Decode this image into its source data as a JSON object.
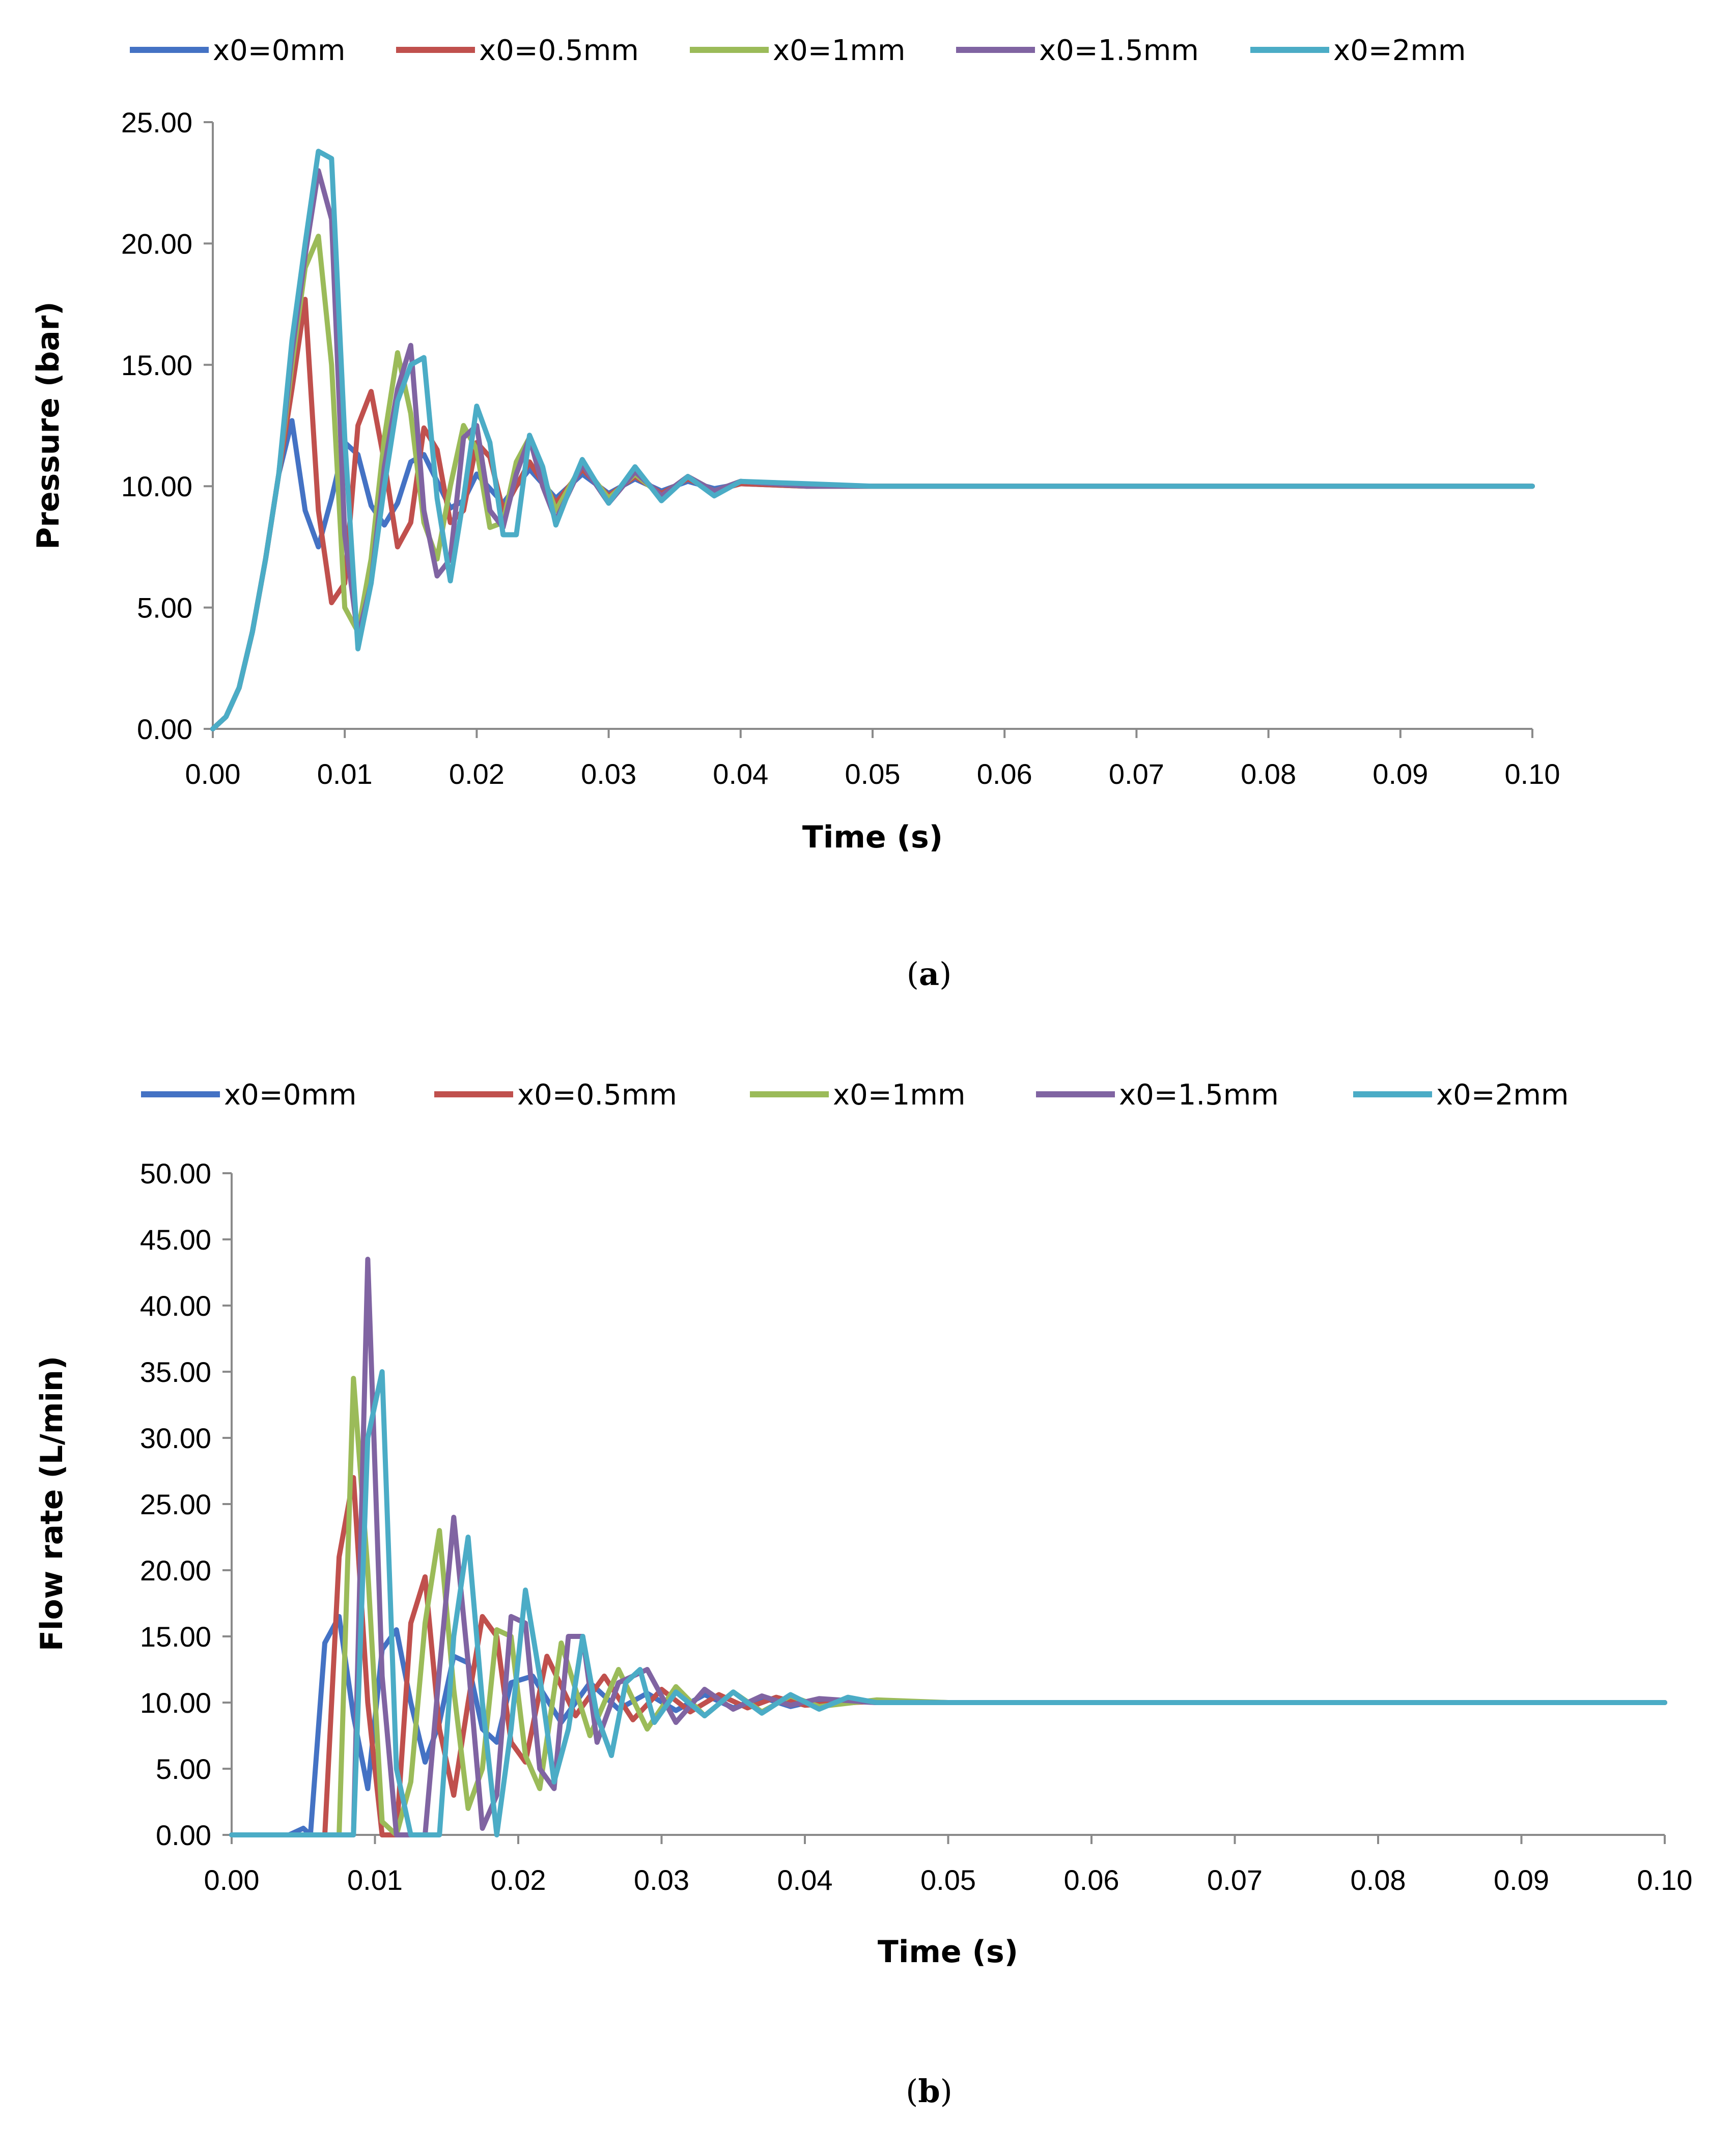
{
  "chart_data": [
    {
      "type": "line",
      "panel": "a",
      "caption_letter": "a",
      "caption": "(a)",
      "xlabel": "Time (s)",
      "ylabel": "Pressure (bar)",
      "xlim": [
        0,
        0.1
      ],
      "ylim": [
        0,
        25
      ],
      "x_ticks": [
        "0.00",
        "0.01",
        "0.02",
        "0.03",
        "0.04",
        "0.05",
        "0.06",
        "0.07",
        "0.08",
        "0.09",
        "0.10"
      ],
      "y_ticks": [
        "0.00",
        "5.00",
        "10.00",
        "15.00",
        "20.00",
        "25.00"
      ],
      "legend_position": "top",
      "series": [
        {
          "name": "x0=0mm",
          "color": "#4472C4",
          "x": [
            0,
            0.001,
            0.002,
            0.003,
            0.004,
            0.005,
            0.006,
            0.007,
            0.008,
            0.009,
            0.01,
            0.011,
            0.012,
            0.013,
            0.014,
            0.015,
            0.016,
            0.017,
            0.018,
            0.019,
            0.02,
            0.022,
            0.024,
            0.026,
            0.028,
            0.03,
            0.032,
            0.034,
            0.036,
            0.038,
            0.04,
            0.045,
            0.05,
            0.055,
            0.06,
            0.07,
            0.08,
            0.09,
            0.1
          ],
          "y": [
            0,
            0.5,
            1.7,
            4,
            7,
            10.5,
            12.7,
            9,
            7.5,
            9.5,
            11.8,
            11.3,
            9.2,
            8.4,
            9.3,
            11,
            11.3,
            10.2,
            9.1,
            9.4,
            10.5,
            9.3,
            10.7,
            9.5,
            10.5,
            9.7,
            10.3,
            9.8,
            10.2,
            9.9,
            10.1,
            10,
            10,
            10,
            10,
            10,
            10,
            10,
            10
          ]
        },
        {
          "name": "x0=0.5mm",
          "color": "#C0504D",
          "x": [
            0,
            0.001,
            0.002,
            0.003,
            0.004,
            0.005,
            0.006,
            0.007,
            0.008,
            0.009,
            0.01,
            0.011,
            0.012,
            0.013,
            0.014,
            0.015,
            0.016,
            0.017,
            0.018,
            0.019,
            0.02,
            0.021,
            0.022,
            0.024,
            0.026,
            0.028,
            0.03,
            0.032,
            0.034,
            0.036,
            0.038,
            0.04,
            0.045,
            0.05,
            0.055,
            0.06,
            0.07,
            0.08,
            0.09,
            0.1
          ],
          "y": [
            0,
            0.5,
            1.7,
            4,
            7,
            10.5,
            14,
            17.7,
            9,
            5.2,
            6,
            12.5,
            13.9,
            11,
            7.5,
            8.5,
            12.4,
            11.5,
            8.5,
            9,
            11.8,
            11.2,
            9,
            11,
            9.3,
            10.7,
            9.6,
            10.4,
            9.7,
            10.3,
            9.8,
            10.1,
            10,
            10,
            10,
            10,
            10,
            10,
            10,
            10
          ]
        },
        {
          "name": "x0=1mm",
          "color": "#9BBB59",
          "x": [
            0,
            0.001,
            0.002,
            0.003,
            0.004,
            0.005,
            0.006,
            0.007,
            0.008,
            0.009,
            0.01,
            0.011,
            0.012,
            0.013,
            0.014,
            0.015,
            0.016,
            0.017,
            0.018,
            0.019,
            0.02,
            0.021,
            0.022,
            0.023,
            0.024,
            0.026,
            0.028,
            0.03,
            0.032,
            0.034,
            0.036,
            0.038,
            0.04,
            0.045,
            0.05,
            0.055,
            0.06,
            0.07,
            0.08,
            0.09,
            0.1
          ],
          "y": [
            0,
            0.5,
            1.7,
            4,
            7,
            10.5,
            15,
            19,
            20.3,
            15,
            5,
            4,
            7,
            12,
            15.5,
            13,
            8.5,
            7,
            10,
            12.5,
            11.5,
            8.3,
            8.5,
            11,
            12,
            9,
            10.9,
            9.5,
            10.5,
            9.6,
            10.4,
            9.8,
            10.2,
            10,
            10,
            10,
            10,
            10,
            10,
            10,
            10
          ]
        },
        {
          "name": "x0=1.5mm",
          "color": "#8064A2",
          "x": [
            0,
            0.001,
            0.002,
            0.003,
            0.004,
            0.005,
            0.006,
            0.007,
            0.008,
            0.009,
            0.01,
            0.011,
            0.012,
            0.013,
            0.014,
            0.015,
            0.016,
            0.017,
            0.018,
            0.019,
            0.02,
            0.021,
            0.022,
            0.023,
            0.024,
            0.025,
            0.026,
            0.028,
            0.03,
            0.032,
            0.034,
            0.036,
            0.038,
            0.04,
            0.045,
            0.05,
            0.055,
            0.06,
            0.07,
            0.08,
            0.09,
            0.1
          ],
          "y": [
            0,
            0.5,
            1.7,
            4,
            7,
            10.5,
            15.5,
            19.5,
            23,
            21,
            8,
            3.8,
            6,
            10.8,
            14,
            15.8,
            9,
            6.3,
            7,
            12,
            12.5,
            9,
            8.3,
            10.5,
            12,
            10,
            8.6,
            10.9,
            9.3,
            10.6,
            9.6,
            10.4,
            9.8,
            10.2,
            10,
            10,
            10,
            10,
            10,
            10,
            10,
            10
          ]
        },
        {
          "name": "x0=2mm",
          "color": "#4BACC6",
          "x": [
            0,
            0.001,
            0.002,
            0.003,
            0.004,
            0.005,
            0.006,
            0.007,
            0.008,
            0.009,
            0.01,
            0.011,
            0.012,
            0.013,
            0.014,
            0.015,
            0.016,
            0.017,
            0.018,
            0.019,
            0.02,
            0.021,
            0.022,
            0.023,
            0.024,
            0.025,
            0.026,
            0.027,
            0.028,
            0.029,
            0.03,
            0.032,
            0.034,
            0.036,
            0.038,
            0.04,
            0.045,
            0.05,
            0.055,
            0.06,
            0.07,
            0.08,
            0.09,
            0.1
          ],
          "y": [
            0,
            0.5,
            1.7,
            4,
            7,
            10.5,
            16,
            20,
            23.8,
            23.5,
            12,
            3.3,
            6,
            10,
            13.5,
            15,
            15.3,
            9.5,
            6.1,
            9.5,
            13.3,
            11.8,
            8,
            8,
            12.1,
            10.8,
            8.4,
            9.8,
            11.1,
            10.2,
            9.3,
            10.8,
            9.4,
            10.4,
            9.6,
            10.2,
            10.1,
            10,
            10,
            10,
            10,
            10,
            10,
            10
          ]
        }
      ]
    },
    {
      "type": "line",
      "panel": "b",
      "caption_letter": "b",
      "caption": "(b)",
      "xlabel": "Time (s)",
      "ylabel": "Flow rate (L/min)",
      "xlim": [
        0,
        0.1
      ],
      "ylim": [
        0,
        50
      ],
      "x_ticks": [
        "0.00",
        "0.01",
        "0.02",
        "0.03",
        "0.04",
        "0.05",
        "0.06",
        "0.07",
        "0.08",
        "0.09",
        "0.10"
      ],
      "y_ticks": [
        "0.00",
        "5.00",
        "10.00",
        "15.00",
        "20.00",
        "25.00",
        "30.00",
        "35.00",
        "40.00",
        "45.00",
        "50.00"
      ],
      "legend_position": "top",
      "series": [
        {
          "name": "x0=0mm",
          "color": "#4472C4",
          "x": [
            0,
            0.001,
            0.002,
            0.003,
            0.004,
            0.005,
            0.0055,
            0.0065,
            0.0075,
            0.0085,
            0.0095,
            0.0105,
            0.0115,
            0.0125,
            0.0135,
            0.0145,
            0.0155,
            0.0165,
            0.0175,
            0.0185,
            0.0195,
            0.021,
            0.023,
            0.025,
            0.027,
            0.029,
            0.031,
            0.033,
            0.035,
            0.037,
            0.039,
            0.041,
            0.045,
            0.05,
            0.055,
            0.06,
            0.07,
            0.08,
            0.09,
            0.1
          ],
          "y": [
            0,
            0,
            0,
            0,
            0,
            0.5,
            0,
            14.5,
            16.5,
            9,
            3.5,
            14,
            15.5,
            10,
            5.5,
            8.5,
            13.5,
            13,
            8,
            7,
            11.5,
            12,
            8.5,
            11.5,
            9.5,
            10.7,
            9.4,
            10.6,
            9.6,
            10.4,
            9.7,
            10.2,
            10,
            10,
            10,
            10,
            10,
            10,
            10,
            10
          ]
        },
        {
          "name": "x0=0.5mm",
          "color": "#C0504D",
          "x": [
            0,
            0.001,
            0.002,
            0.003,
            0.004,
            0.005,
            0.006,
            0.0065,
            0.0075,
            0.0085,
            0.0095,
            0.0105,
            0.0115,
            0.0125,
            0.0135,
            0.0145,
            0.0155,
            0.0165,
            0.0175,
            0.0185,
            0.0195,
            0.0205,
            0.022,
            0.024,
            0.026,
            0.028,
            0.03,
            0.032,
            0.034,
            0.036,
            0.038,
            0.04,
            0.045,
            0.05,
            0.055,
            0.06,
            0.07,
            0.08,
            0.09,
            0.1
          ],
          "y": [
            0,
            0,
            0,
            0,
            0,
            0,
            0,
            0,
            21,
            27,
            10,
            0,
            0,
            16,
            19.5,
            8,
            3,
            10,
            16.5,
            15,
            7,
            5.5,
            13.5,
            9,
            12,
            8.7,
            11,
            9.3,
            10.6,
            9.6,
            10.4,
            9.8,
            10.1,
            10,
            10,
            10,
            10,
            10,
            10,
            10
          ]
        },
        {
          "name": "x0=1mm",
          "color": "#9BBB59",
          "x": [
            0,
            0.001,
            0.002,
            0.003,
            0.004,
            0.005,
            0.006,
            0.007,
            0.0075,
            0.0085,
            0.0095,
            0.0105,
            0.0115,
            0.0125,
            0.0135,
            0.0145,
            0.0155,
            0.0165,
            0.0175,
            0.0185,
            0.0195,
            0.0205,
            0.0215,
            0.023,
            0.025,
            0.027,
            0.029,
            0.031,
            0.033,
            0.035,
            0.037,
            0.039,
            0.041,
            0.045,
            0.05,
            0.055,
            0.06,
            0.07,
            0.08,
            0.09,
            0.1
          ],
          "y": [
            0,
            0,
            0,
            0,
            0,
            0,
            0,
            0,
            0,
            34.5,
            20,
            1,
            0,
            4,
            16,
            23,
            11,
            2,
            5,
            15.5,
            15,
            6,
            3.5,
            14.5,
            7.5,
            12.5,
            8,
            11.2,
            9,
            10.8,
            9.3,
            10.5,
            9.7,
            10.2,
            10,
            10,
            10,
            10,
            10,
            10,
            10
          ]
        },
        {
          "name": "x0=1.5mm",
          "color": "#8064A2",
          "x": [
            0,
            0.001,
            0.002,
            0.003,
            0.004,
            0.005,
            0.006,
            0.007,
            0.008,
            0.0085,
            0.0095,
            0.0105,
            0.0115,
            0.0125,
            0.0135,
            0.0145,
            0.0155,
            0.0165,
            0.0175,
            0.0185,
            0.0195,
            0.0205,
            0.0215,
            0.0225,
            0.0235,
            0.0245,
            0.0255,
            0.027,
            0.029,
            0.031,
            0.033,
            0.035,
            0.037,
            0.039,
            0.041,
            0.045,
            0.05,
            0.055,
            0.06,
            0.07,
            0.08,
            0.09,
            0.1
          ],
          "y": [
            0,
            0,
            0,
            0,
            0,
            0,
            0,
            0,
            0,
            0,
            43.5,
            12,
            0,
            0,
            0,
            12.5,
            24,
            13,
            0.5,
            3,
            16.5,
            16,
            5,
            3.5,
            15,
            15,
            7,
            11.5,
            12.5,
            8.5,
            11,
            9.5,
            10.5,
            9.8,
            10.3,
            10,
            10,
            10,
            10,
            10,
            10,
            10,
            10
          ]
        },
        {
          "name": "x0=2mm",
          "color": "#4BACC6",
          "x": [
            0,
            0.001,
            0.002,
            0.003,
            0.004,
            0.005,
            0.006,
            0.007,
            0.008,
            0.0085,
            0.0095,
            0.0105,
            0.0115,
            0.0125,
            0.0135,
            0.0145,
            0.0155,
            0.0165,
            0.0175,
            0.0185,
            0.0195,
            0.0205,
            0.0215,
            0.0225,
            0.0235,
            0.0245,
            0.0255,
            0.0265,
            0.0275,
            0.0285,
            0.0295,
            0.031,
            0.033,
            0.035,
            0.037,
            0.039,
            0.041,
            0.043,
            0.045,
            0.05,
            0.055,
            0.06,
            0.07,
            0.08,
            0.09,
            0.1
          ],
          "y": [
            0,
            0,
            0,
            0,
            0,
            0,
            0,
            0,
            0,
            0,
            30,
            35,
            5,
            0,
            0,
            0,
            15,
            22.5,
            10,
            0,
            8,
            18.5,
            12,
            4,
            8,
            15,
            9,
            6,
            11.5,
            12.5,
            8.5,
            10.8,
            9,
            10.8,
            9.2,
            10.6,
            9.5,
            10.4,
            10,
            10,
            10,
            10,
            10,
            10,
            10,
            10
          ]
        }
      ]
    }
  ]
}
